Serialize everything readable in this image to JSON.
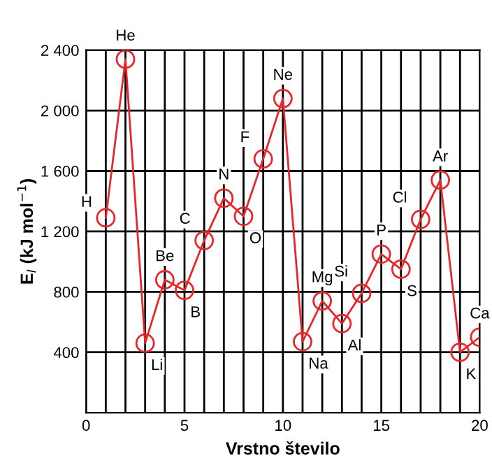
{
  "chart_data": {
    "type": "line",
    "xlabel": "Vrstno število",
    "ylabel": "E$_{I}$ (kJ mol$^{−1}$)",
    "x": [
      1,
      2,
      3,
      4,
      5,
      6,
      7,
      8,
      9,
      10,
      11,
      12,
      13,
      14,
      15,
      16,
      17,
      18,
      19,
      20
    ],
    "series": [
      {
        "color": "#e8262a",
        "values": [
          1290,
          2340,
          460,
          880,
          810,
          1140,
          1420,
          1300,
          1680,
          2080,
          470,
          740,
          590,
          790,
          1050,
          950,
          1280,
          1540,
          400,
          500
        ]
      }
    ],
    "annotations": [
      {
        "text": "H",
        "x": 1,
        "y": 1290
      },
      {
        "text": "He",
        "x": 2,
        "y": 2340
      },
      {
        "text": "Li",
        "x": 3,
        "y": 460
      },
      {
        "text": "Be",
        "x": 4,
        "y": 880
      },
      {
        "text": "B",
        "x": 5,
        "y": 810
      },
      {
        "text": "C",
        "x": 6,
        "y": 1140
      },
      {
        "text": "N",
        "x": 7,
        "y": 1420
      },
      {
        "text": "O",
        "x": 8,
        "y": 1300
      },
      {
        "text": "F",
        "x": 9,
        "y": 1680
      },
      {
        "text": "Ne",
        "x": 10,
        "y": 2080
      },
      {
        "text": "Na",
        "x": 11,
        "y": 470
      },
      {
        "text": "Mg",
        "x": 12,
        "y": 740
      },
      {
        "text": "Al",
        "x": 13,
        "y": 590
      },
      {
        "text": "Si",
        "x": 14,
        "y": 790
      },
      {
        "text": "P",
        "x": 15,
        "y": 1050
      },
      {
        "text": "S",
        "x": 16,
        "y": 950
      },
      {
        "text": "Cl",
        "x": 17,
        "y": 1280
      },
      {
        "text": "Ar",
        "x": 18,
        "y": 1540
      },
      {
        "text": "K",
        "x": 19,
        "y": 400
      },
      {
        "text": "Ca",
        "x": 20,
        "y": 500
      }
    ],
    "xlim": [
      0,
      20
    ],
    "xticks": [
      0,
      5,
      10,
      15,
      20
    ],
    "ylim": [
      0,
      2400
    ],
    "yticks": [
      {
        "value": 400,
        "label": "400"
      },
      {
        "value": 800,
        "label": "800"
      },
      {
        "value": 1200,
        "label": "1 200"
      },
      {
        "value": 1600,
        "label": "1 600"
      },
      {
        "value": 2000,
        "label": "2 000"
      },
      {
        "value": 2400,
        "label": "2 400"
      }
    ],
    "grid": true,
    "marker": "circle",
    "line_style": "solid",
    "legend": false
  }
}
